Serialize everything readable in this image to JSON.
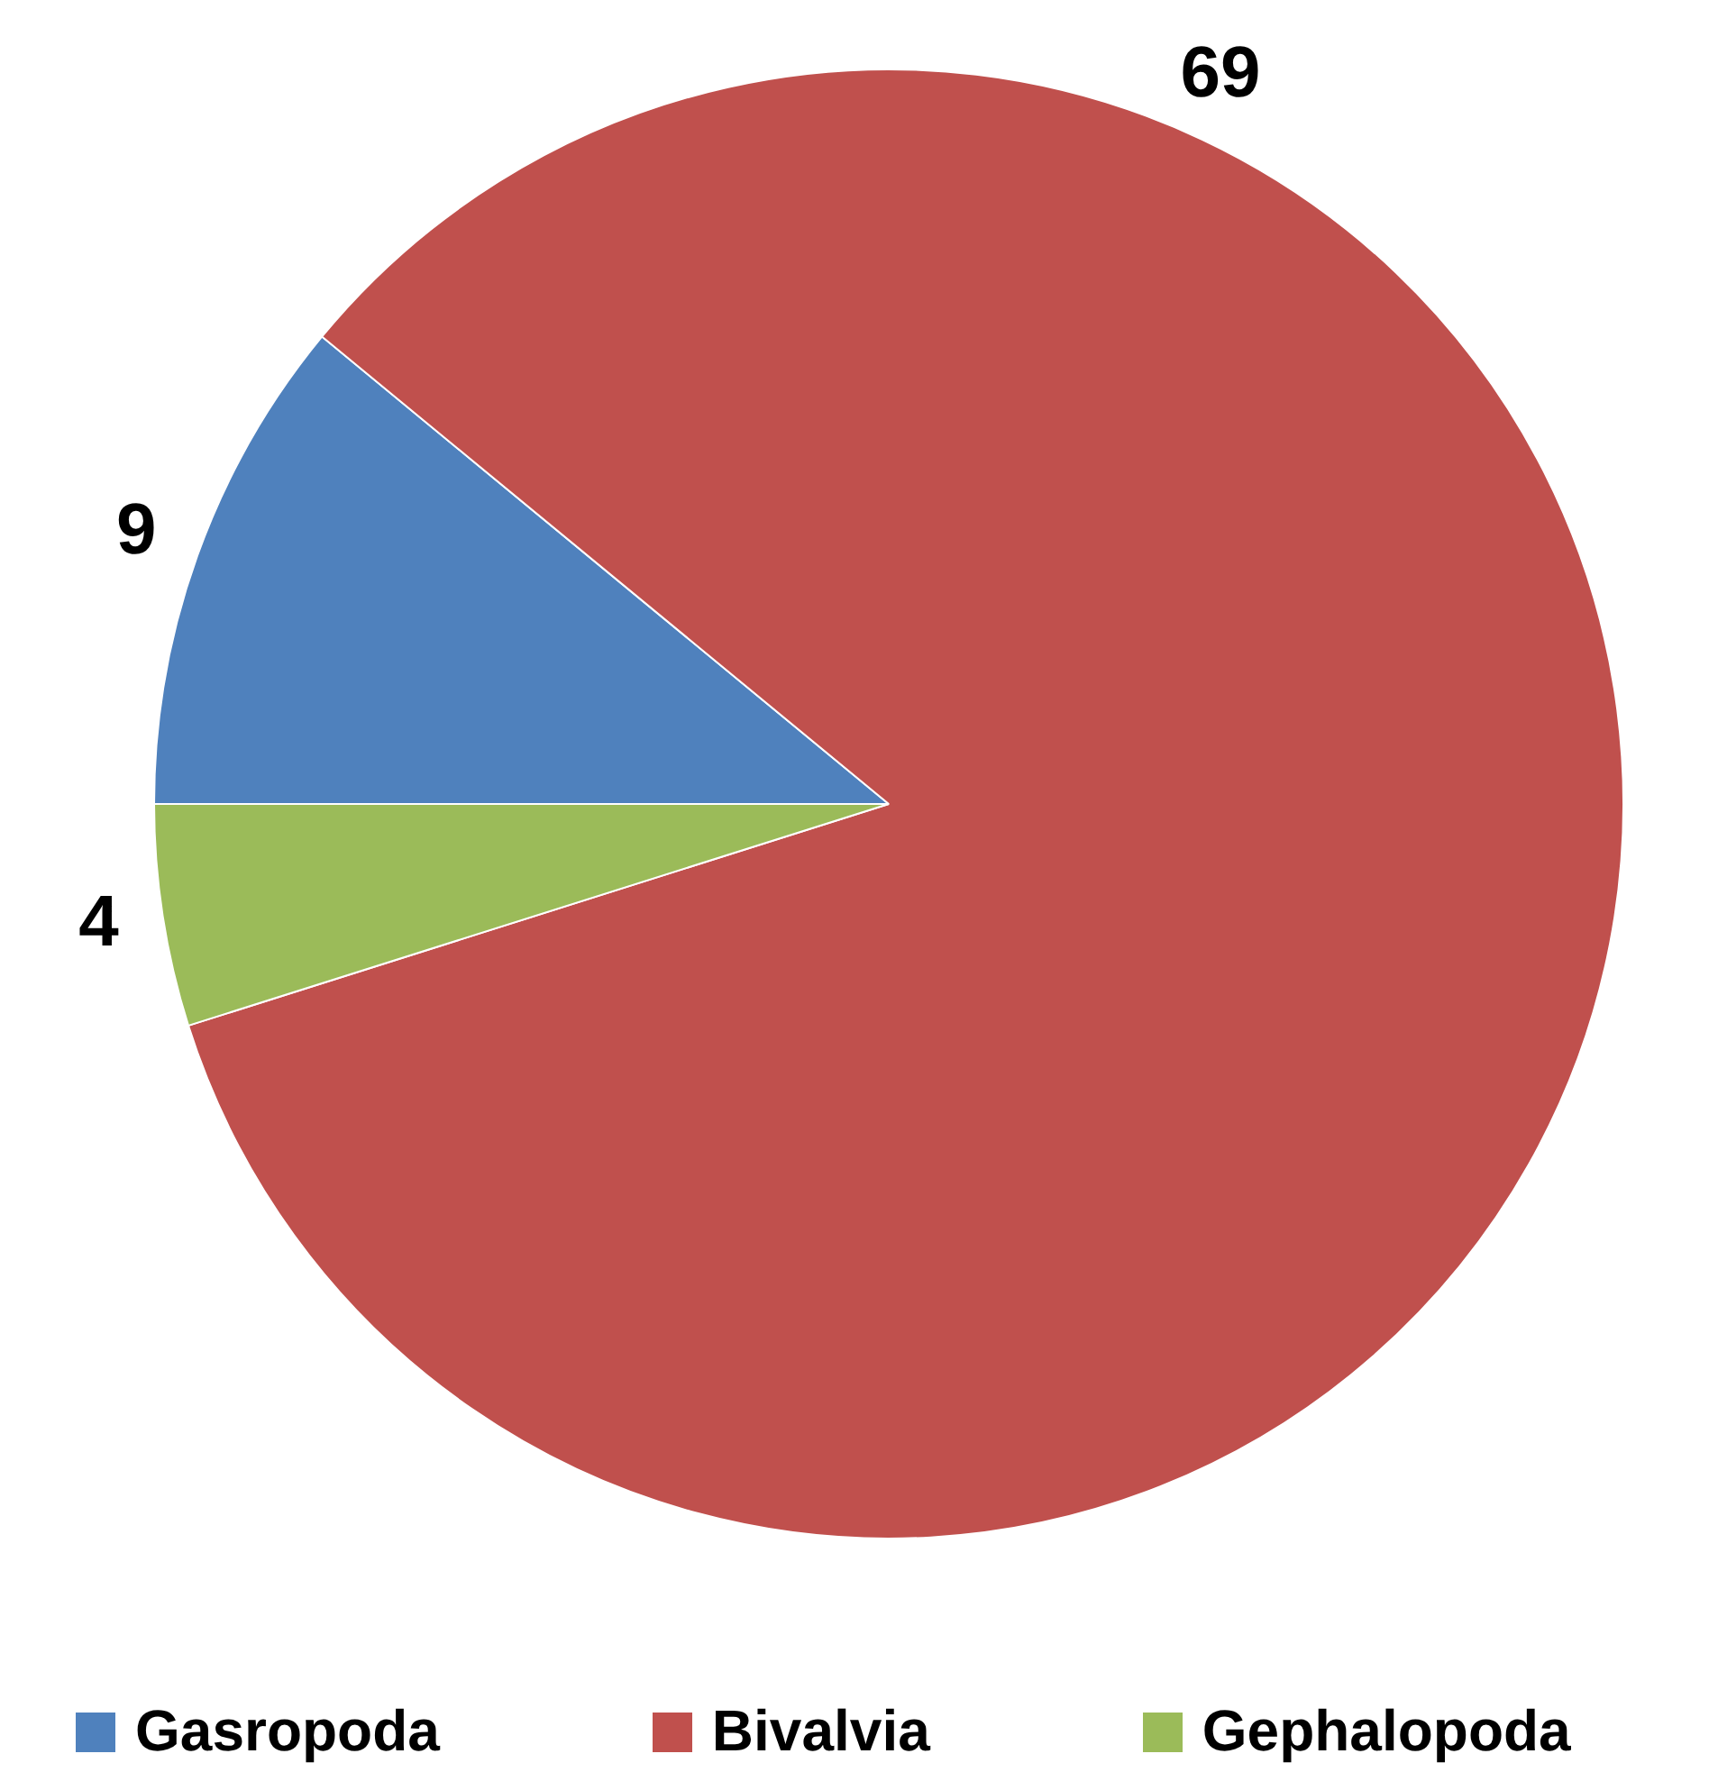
{
  "chart_data": {
    "type": "pie",
    "categories": [
      "Gasropoda",
      "Bivalvia",
      "Gephalopoda"
    ],
    "values": [
      9,
      69,
      4
    ],
    "colors": [
      "#4f81bd",
      "#c0504d",
      "#9bbb59"
    ],
    "data_labels": true,
    "legend": "bottom"
  }
}
